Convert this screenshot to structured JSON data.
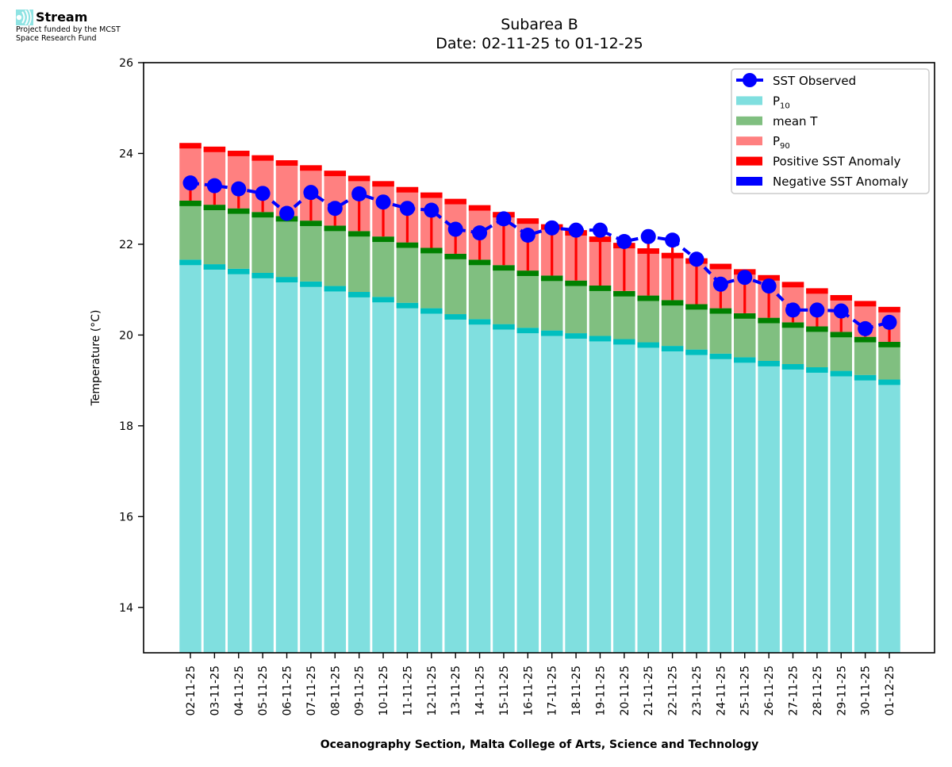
{
  "branding": {
    "name": "Stream",
    "line1": "Project funded by the MCST",
    "line2": "Space Research Fund",
    "logo_icon": "stream-wave-icon"
  },
  "chart_data": {
    "type": "bar",
    "title": "Subarea B",
    "subtitle": "Date: 02-11-25 to 01-12-25",
    "xlabel": "Oceanography Section, Malta College of Arts, Science and Technology",
    "ylabel": "Temperature (°C)",
    "ylim": [
      13,
      26
    ],
    "yticks": [
      14,
      16,
      18,
      20,
      22,
      24,
      26
    ],
    "grid": false,
    "legend_position": "top-right",
    "legend": [
      {
        "label": "SST Observed",
        "sub": "",
        "kind": "line-marker",
        "color": "#0000ff"
      },
      {
        "label": "P",
        "sub": "10",
        "kind": "patch",
        "color": "#80dfdf"
      },
      {
        "label": "mean T",
        "sub": "",
        "kind": "patch",
        "color": "#80bf80"
      },
      {
        "label": "P",
        "sub": "90",
        "kind": "patch",
        "color": "#ff8080"
      },
      {
        "label": "Positive SST Anomaly",
        "sub": "",
        "kind": "patch",
        "color": "#ff0000"
      },
      {
        "label": "Negative SST Anomaly",
        "sub": "",
        "kind": "patch",
        "color": "#0000ff"
      }
    ],
    "colors": {
      "p10": "#80dfdf",
      "p10_cap": "#00bfbf",
      "mean": "#80bf80",
      "mean_cap": "#008000",
      "p90": "#ff8080",
      "p90_cap": "#ff0000",
      "sst": "#0000ff",
      "pos_anom": "#ff0000",
      "neg_anom": "#0000ff"
    },
    "categories": [
      "02-11-25",
      "03-11-25",
      "04-11-25",
      "05-11-25",
      "06-11-25",
      "07-11-25",
      "08-11-25",
      "09-11-25",
      "10-11-25",
      "11-11-25",
      "12-11-25",
      "13-11-25",
      "14-11-25",
      "15-11-25",
      "16-11-25",
      "17-11-25",
      "18-11-25",
      "19-11-25",
      "20-11-25",
      "21-11-25",
      "22-11-25",
      "23-11-25",
      "24-11-25",
      "25-11-25",
      "26-11-25",
      "27-11-25",
      "28-11-25",
      "29-11-25",
      "30-11-25",
      "01-12-25"
    ],
    "series": [
      {
        "name": "P10",
        "values": [
          21.66,
          21.56,
          21.46,
          21.37,
          21.28,
          21.18,
          21.08,
          20.95,
          20.84,
          20.71,
          20.59,
          20.46,
          20.35,
          20.24,
          20.16,
          20.1,
          20.04,
          19.98,
          19.91,
          19.84,
          19.76,
          19.68,
          19.59,
          19.51,
          19.43,
          19.36,
          19.29,
          19.21,
          19.12,
          19.02
        ]
      },
      {
        "name": "mean T",
        "values": [
          22.96,
          22.87,
          22.79,
          22.71,
          22.62,
          22.52,
          22.41,
          22.29,
          22.17,
          22.04,
          21.92,
          21.79,
          21.66,
          21.54,
          21.42,
          21.31,
          21.2,
          21.09,
          20.97,
          20.87,
          20.77,
          20.68,
          20.59,
          20.48,
          20.38,
          20.28,
          20.19,
          20.07,
          19.96,
          19.85
        ]
      },
      {
        "name": "P90",
        "values": [
          24.23,
          24.15,
          24.06,
          23.96,
          23.85,
          23.74,
          23.62,
          23.51,
          23.39,
          23.26,
          23.14,
          23.0,
          22.86,
          22.71,
          22.57,
          22.44,
          22.31,
          22.17,
          22.03,
          21.91,
          21.81,
          21.69,
          21.57,
          21.45,
          21.32,
          21.17,
          21.03,
          20.88,
          20.75,
          20.62
        ]
      },
      {
        "name": "SST Observed",
        "values": [
          23.35,
          23.29,
          23.22,
          23.12,
          22.68,
          23.14,
          22.79,
          23.11,
          22.93,
          22.79,
          22.75,
          22.33,
          22.25,
          22.56,
          22.2,
          22.36,
          22.31,
          22.31,
          22.06,
          22.17,
          22.09,
          21.67,
          21.12,
          21.27,
          21.08,
          20.55,
          20.55,
          20.53,
          20.14,
          20.28
        ]
      }
    ]
  }
}
